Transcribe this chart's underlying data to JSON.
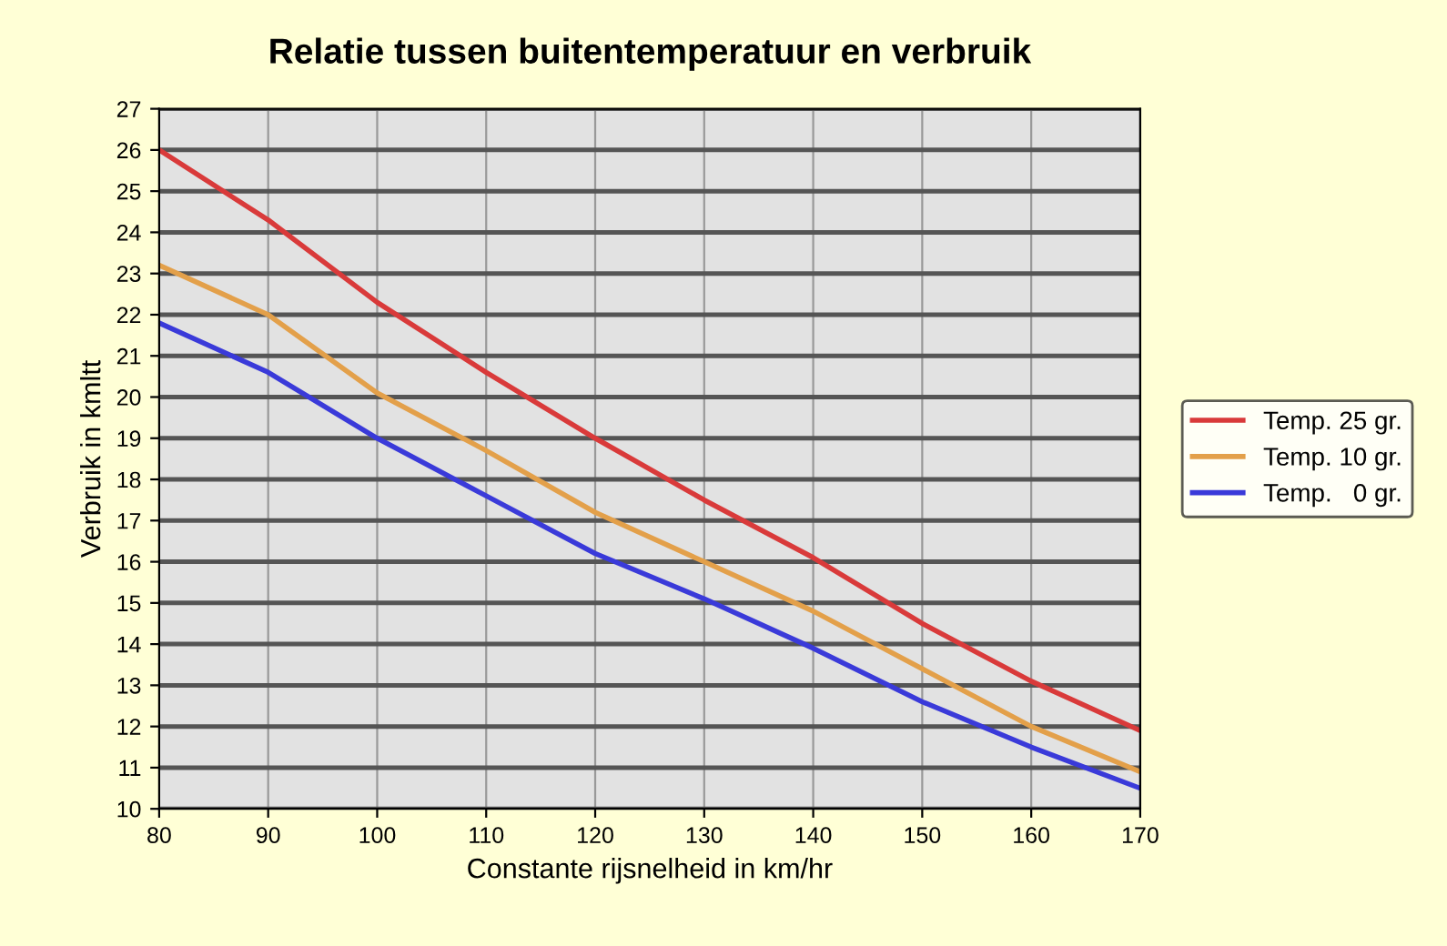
{
  "chart_data": {
    "type": "line",
    "title": "Relatie tussen buitentemperatuur en verbruik",
    "xlabel": "Constante rijsnelheid in km/hr",
    "ylabel": "Verbruik in kmltt",
    "x": [
      80,
      90,
      100,
      110,
      120,
      130,
      140,
      150,
      160,
      170
    ],
    "series": [
      {
        "name": "Temp. 25 gr.",
        "color": "#d93a3a",
        "values": [
          26,
          24.3,
          22.3,
          20.6,
          19.0,
          17.5,
          16.1,
          14.5,
          13.1,
          11.9
        ]
      },
      {
        "name": "Temp. 10 gr.",
        "color": "#e3a04a",
        "values": [
          23.2,
          22.0,
          20.1,
          18.7,
          17.2,
          16.0,
          14.8,
          13.4,
          12.0,
          10.9
        ]
      },
      {
        "name": "Temp.   0 gr.",
        "color": "#3a3ad9",
        "values": [
          21.8,
          20.6,
          19.0,
          17.6,
          16.2,
          15.1,
          13.9,
          12.6,
          11.5,
          10.5
        ]
      }
    ],
    "xlim": [
      80,
      170
    ],
    "xticks": [
      80,
      90,
      100,
      110,
      120,
      130,
      140,
      150,
      160,
      170
    ],
    "ylim": [
      10,
      27
    ],
    "yticks": [
      10,
      11,
      12,
      13,
      14,
      15,
      16,
      17,
      18,
      19,
      20,
      21,
      22,
      23,
      24,
      25,
      26,
      27
    ],
    "grid": true,
    "legend": "right",
    "marker": "none",
    "line_style": "solid"
  }
}
